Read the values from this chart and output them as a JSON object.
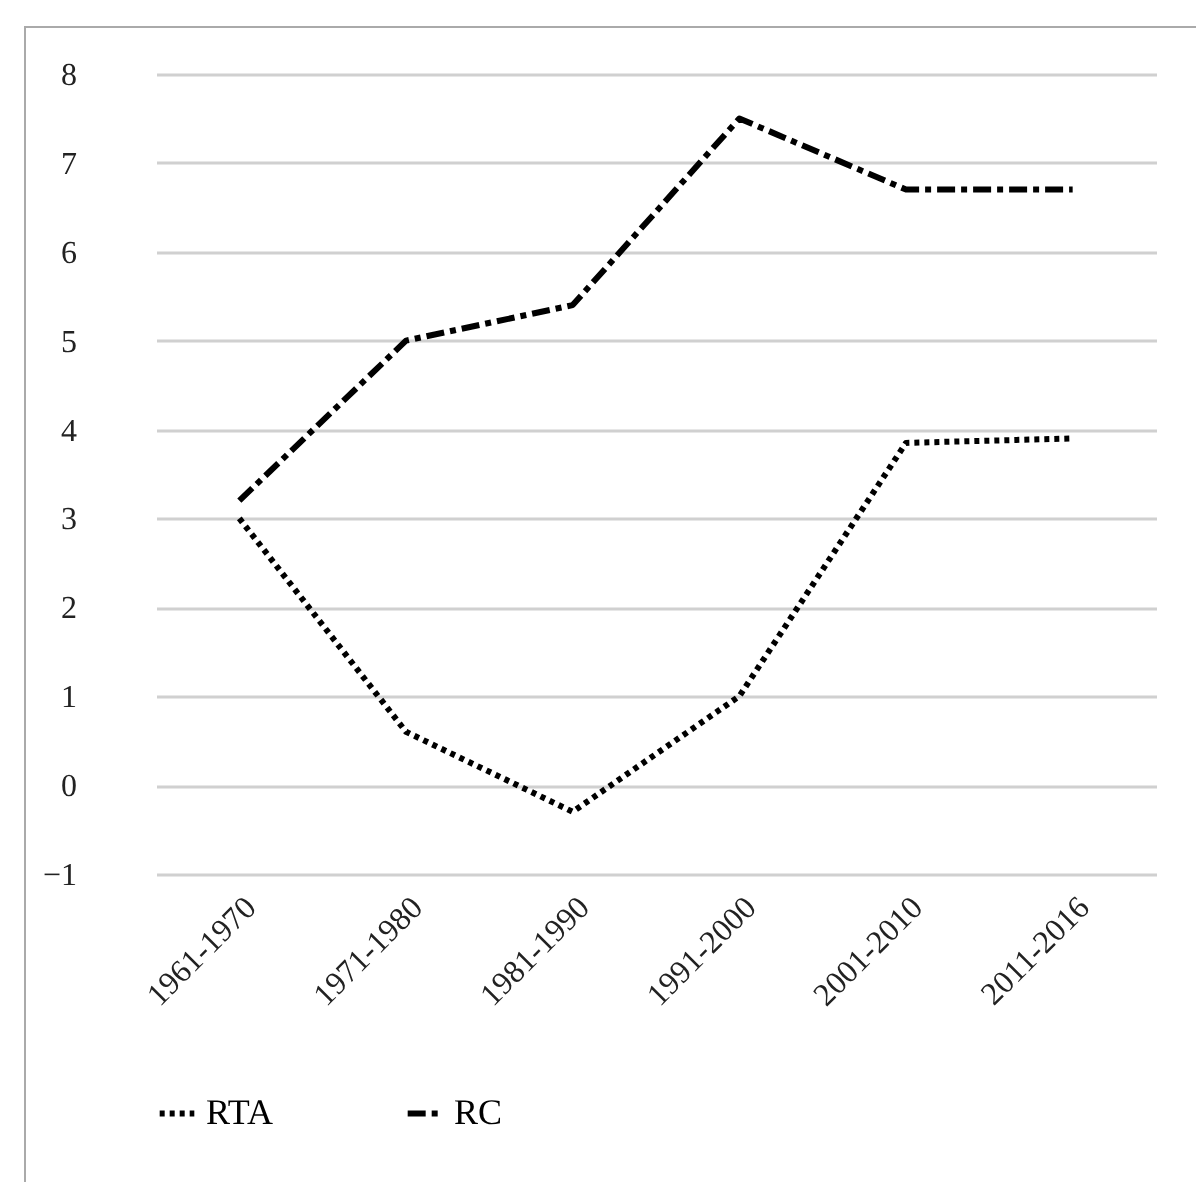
{
  "chart_data": {
    "type": "line",
    "categories": [
      "1961-1970",
      "1971-1980",
      "1981-1990",
      "1991-2000",
      "2001-2010",
      "2011-2016"
    ],
    "series": [
      {
        "name": "RTA",
        "color": "#000000",
        "line_style": "dotted",
        "values": [
          3.0,
          0.6,
          -0.3,
          1.0,
          3.85,
          3.9
        ]
      },
      {
        "name": "RC",
        "color": "#000000",
        "line_style": "dashed",
        "values": [
          3.2,
          5.0,
          5.4,
          7.5,
          6.7,
          6.7
        ]
      }
    ],
    "ylim": [
      -1,
      8
    ],
    "yticks": [
      -1,
      0,
      1,
      2,
      3,
      4,
      5,
      6,
      7,
      8
    ],
    "grid": "y",
    "legend": "bottom"
  }
}
